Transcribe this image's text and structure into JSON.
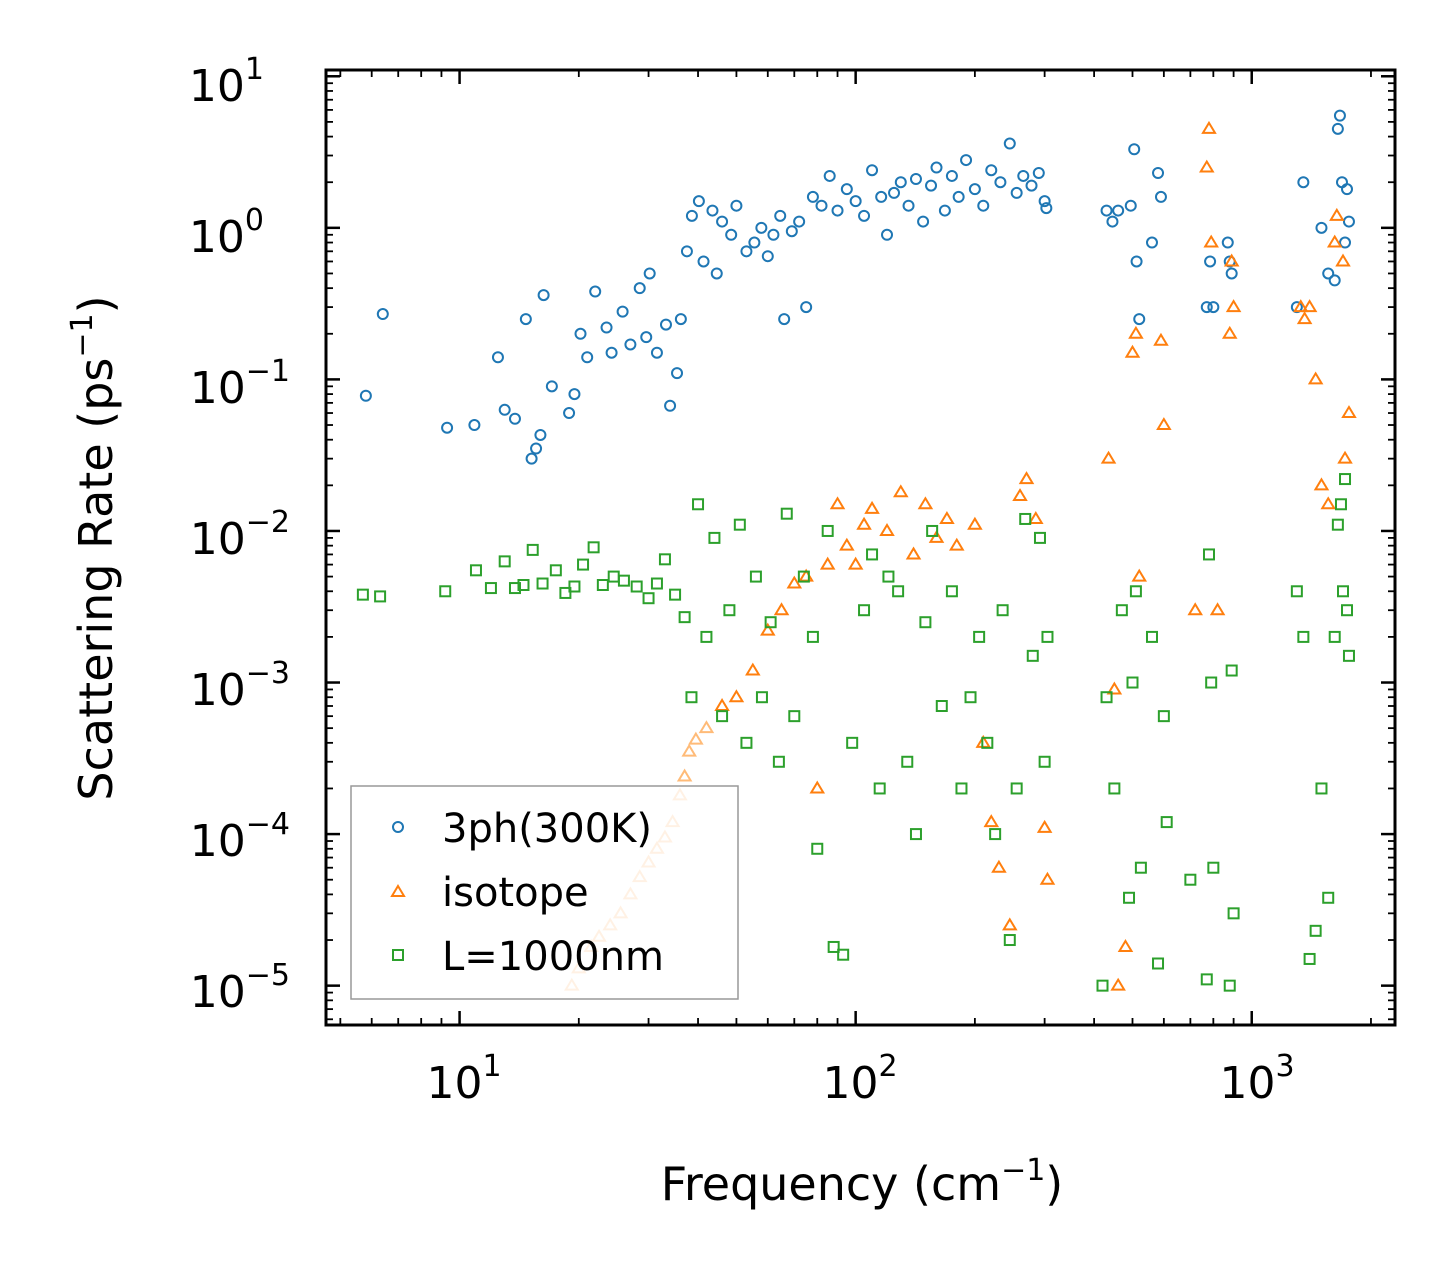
{
  "chart_data": {
    "type": "scatter",
    "title": "",
    "xlabel": "Frequency (cm",
    "xlabel_sup": "−1",
    "xlabel_end": ")",
    "ylabel": "Scattering Rate (ps",
    "ylabel_sup": "−1",
    "ylabel_end": ")",
    "xscale": "log",
    "yscale": "log",
    "xlim": [
      4.6,
      2300
    ],
    "ylim": [
      5.5e-06,
      11
    ],
    "x_ticks": [
      {
        "base": "10",
        "exp": "1",
        "value": 10
      },
      {
        "base": "10",
        "exp": "2",
        "value": 100
      },
      {
        "base": "10",
        "exp": "3",
        "value": 1000
      }
    ],
    "y_ticks": [
      {
        "base": "10",
        "exp": "1",
        "value": 10
      },
      {
        "base": "10",
        "exp": "0",
        "value": 1
      },
      {
        "base": "10",
        "exp": "−1",
        "value": 0.1
      },
      {
        "base": "10",
        "exp": "−2",
        "value": 0.01
      },
      {
        "base": "10",
        "exp": "−3",
        "value": 0.001
      },
      {
        "base": "10",
        "exp": "−4",
        "value": 0.0001
      },
      {
        "base": "10",
        "exp": "−5",
        "value": 1e-05
      }
    ],
    "legend_position": "lower-left",
    "series": [
      {
        "name": "3ph(300K)",
        "marker": "circle",
        "color": "#1f77b4",
        "points": [
          [
            5.8,
            0.078
          ],
          [
            6.4,
            0.27
          ],
          [
            9.3,
            0.048
          ],
          [
            10.9,
            0.05
          ],
          [
            12.5,
            0.14
          ],
          [
            13,
            0.063
          ],
          [
            13.8,
            0.055
          ],
          [
            14.7,
            0.25
          ],
          [
            15.2,
            0.03
          ],
          [
            15.6,
            0.035
          ],
          [
            16,
            0.043
          ],
          [
            16.3,
            0.36
          ],
          [
            17.1,
            0.09
          ],
          [
            18.9,
            0.06
          ],
          [
            19.5,
            0.08
          ],
          [
            20.2,
            0.2
          ],
          [
            21,
            0.14
          ],
          [
            22,
            0.38
          ],
          [
            23.5,
            0.22
          ],
          [
            24.2,
            0.15
          ],
          [
            25.8,
            0.28
          ],
          [
            27,
            0.17
          ],
          [
            28.5,
            0.4
          ],
          [
            29.6,
            0.19
          ],
          [
            30.2,
            0.5
          ],
          [
            31.5,
            0.15
          ],
          [
            33.2,
            0.23
          ],
          [
            34,
            0.067
          ],
          [
            35.4,
            0.11
          ],
          [
            36.2,
            0.25
          ],
          [
            37.5,
            0.7
          ],
          [
            38.6,
            1.2
          ],
          [
            40.2,
            1.5
          ],
          [
            41.3,
            0.6
          ],
          [
            43.5,
            1.3
          ],
          [
            44.6,
            0.5
          ],
          [
            46,
            1.1
          ],
          [
            48.5,
            0.9
          ],
          [
            50,
            1.4
          ],
          [
            53,
            0.7
          ],
          [
            55.5,
            0.8
          ],
          [
            57.8,
            1
          ],
          [
            60,
            0.65
          ],
          [
            62,
            0.9
          ],
          [
            64.5,
            1.2
          ],
          [
            66,
            0.25
          ],
          [
            69,
            0.95
          ],
          [
            72,
            1.1
          ],
          [
            75,
            0.3
          ],
          [
            78,
            1.6
          ],
          [
            82,
            1.4
          ],
          [
            86,
            2.2
          ],
          [
            90,
            1.3
          ],
          [
            95,
            1.8
          ],
          [
            100,
            1.5
          ],
          [
            105,
            1.2
          ],
          [
            110,
            2.4
          ],
          [
            116,
            1.6
          ],
          [
            120,
            0.9
          ],
          [
            125,
            1.7
          ],
          [
            130,
            2
          ],
          [
            136,
            1.4
          ],
          [
            142,
            2.1
          ],
          [
            148,
            1.1
          ],
          [
            155,
            1.9
          ],
          [
            160,
            2.5
          ],
          [
            168,
            1.3
          ],
          [
            175,
            2.2
          ],
          [
            182,
            1.6
          ],
          [
            190,
            2.8
          ],
          [
            200,
            1.8
          ],
          [
            210,
            1.4
          ],
          [
            220,
            2.4
          ],
          [
            232,
            2
          ],
          [
            245,
            3.6
          ],
          [
            255,
            1.7
          ],
          [
            265,
            2.2
          ],
          [
            278,
            1.9
          ],
          [
            290,
            2.3
          ],
          [
            300,
            1.5
          ],
          [
            303,
            1.35
          ],
          [
            430,
            1.3
          ],
          [
            445,
            1.1
          ],
          [
            460,
            1.3
          ],
          [
            495,
            1.4
          ],
          [
            505,
            3.3
          ],
          [
            512,
            0.6
          ],
          [
            520,
            0.25
          ],
          [
            560,
            0.8
          ],
          [
            580,
            2.3
          ],
          [
            590,
            1.6
          ],
          [
            770,
            0.3
          ],
          [
            785,
            0.6
          ],
          [
            800,
            0.3
          ],
          [
            870,
            0.8
          ],
          [
            880,
            0.6
          ],
          [
            890,
            0.5
          ],
          [
            1300,
            0.3
          ],
          [
            1350,
            2
          ],
          [
            1500,
            1
          ],
          [
            1560,
            0.5
          ],
          [
            1620,
            0.45
          ],
          [
            1650,
            4.5
          ],
          [
            1670,
            5.5
          ],
          [
            1690,
            2
          ],
          [
            1720,
            0.8
          ],
          [
            1740,
            1.8
          ],
          [
            1760,
            1.1
          ]
        ]
      },
      {
        "name": "isotope",
        "marker": "triangle",
        "color": "#ff7f0e",
        "light_color": "#ffbb78",
        "points": [
          [
            19.2,
            1e-05
          ],
          [
            20,
            1.3e-05
          ],
          [
            21.5,
            1.8e-05
          ],
          [
            22.5,
            2.1e-05
          ],
          [
            24,
            2.5e-05
          ],
          [
            25.5,
            3e-05
          ],
          [
            27,
            4e-05
          ],
          [
            28.5,
            5.2e-05
          ],
          [
            30,
            6.5e-05
          ],
          [
            31.5,
            8e-05
          ],
          [
            33,
            9.5e-05
          ],
          [
            34.5,
            0.00012
          ],
          [
            36,
            0.00018
          ],
          [
            37,
            0.00024
          ],
          [
            38,
            0.00035
          ],
          [
            39.5,
            0.00042
          ],
          [
            42,
            0.0005
          ],
          [
            46,
            0.0007
          ],
          [
            50,
            0.0008
          ],
          [
            55,
            0.0012
          ],
          [
            60,
            0.0022
          ],
          [
            65,
            0.003
          ],
          [
            70,
            0.0045
          ],
          [
            75,
            0.005
          ],
          [
            80,
            0.0002
          ],
          [
            85,
            0.006
          ],
          [
            90,
            0.015
          ],
          [
            95,
            0.008
          ],
          [
            100,
            0.006
          ],
          [
            105,
            0.011
          ],
          [
            110,
            0.014
          ],
          [
            120,
            0.01
          ],
          [
            130,
            0.018
          ],
          [
            140,
            0.007
          ],
          [
            150,
            0.015
          ],
          [
            160,
            0.009
          ],
          [
            170,
            0.012
          ],
          [
            180,
            0.008
          ],
          [
            200,
            0.011
          ],
          [
            210,
            0.0004
          ],
          [
            220,
            0.00012
          ],
          [
            230,
            6e-05
          ],
          [
            245,
            2.5e-05
          ],
          [
            260,
            0.017
          ],
          [
            270,
            0.022
          ],
          [
            285,
            0.012
          ],
          [
            300,
            0.00011
          ],
          [
            305,
            5e-05
          ],
          [
            435,
            0.03
          ],
          [
            450,
            0.0009
          ],
          [
            460,
            1e-05
          ],
          [
            480,
            1.8e-05
          ],
          [
            500,
            0.15
          ],
          [
            510,
            0.2
          ],
          [
            520,
            0.005
          ],
          [
            590,
            0.18
          ],
          [
            600,
            0.05
          ],
          [
            720,
            0.003
          ],
          [
            770,
            2.5
          ],
          [
            780,
            4.5
          ],
          [
            790,
            0.8
          ],
          [
            820,
            0.003
          ],
          [
            880,
            0.2
          ],
          [
            890,
            0.6
          ],
          [
            900,
            0.3
          ],
          [
            1330,
            0.3
          ],
          [
            1360,
            0.25
          ],
          [
            1400,
            0.3
          ],
          [
            1450,
            0.1
          ],
          [
            1500,
            0.02
          ],
          [
            1560,
            0.015
          ],
          [
            1620,
            0.8
          ],
          [
            1640,
            1.2
          ],
          [
            1700,
            0.6
          ],
          [
            1720,
            0.03
          ],
          [
            1760,
            0.06
          ]
        ]
      },
      {
        "name": "L=1000nm",
        "marker": "square",
        "color": "#2ca02c",
        "points": [
          [
            5.7,
            0.0038
          ],
          [
            6.3,
            0.0037
          ],
          [
            9.2,
            0.004
          ],
          [
            11,
            0.0055
          ],
          [
            12,
            0.0042
          ],
          [
            13,
            0.0063
          ],
          [
            13.8,
            0.0042
          ],
          [
            14.5,
            0.0044
          ],
          [
            15.3,
            0.0075
          ],
          [
            16.2,
            0.0045
          ],
          [
            17.5,
            0.0055
          ],
          [
            18.5,
            0.0039
          ],
          [
            19.5,
            0.0043
          ],
          [
            20.5,
            0.006
          ],
          [
            21.8,
            0.0078
          ],
          [
            23,
            0.0044
          ],
          [
            24.5,
            0.005
          ],
          [
            26,
            0.0047
          ],
          [
            28,
            0.0043
          ],
          [
            30,
            0.0036
          ],
          [
            31.5,
            0.0045
          ],
          [
            33,
            0.0065
          ],
          [
            35,
            0.0038
          ],
          [
            37,
            0.0027
          ],
          [
            38.5,
            0.0008
          ],
          [
            40,
            0.015
          ],
          [
            42,
            0.002
          ],
          [
            44,
            0.009
          ],
          [
            46,
            0.0006
          ],
          [
            48,
            0.003
          ],
          [
            51,
            0.011
          ],
          [
            53,
            0.0004
          ],
          [
            56,
            0.005
          ],
          [
            58,
            0.0008
          ],
          [
            61,
            0.0025
          ],
          [
            64,
            0.0003
          ],
          [
            67,
            0.013
          ],
          [
            70,
            0.0006
          ],
          [
            74,
            0.005
          ],
          [
            78,
            0.002
          ],
          [
            80,
            8e-05
          ],
          [
            85,
            0.01
          ],
          [
            88,
            1.8e-05
          ],
          [
            93,
            1.6e-05
          ],
          [
            98,
            0.0004
          ],
          [
            105,
            0.003
          ],
          [
            110,
            0.007
          ],
          [
            115,
            0.0002
          ],
          [
            121,
            0.005
          ],
          [
            128,
            0.004
          ],
          [
            135,
            0.0003
          ],
          [
            142,
            0.0001
          ],
          [
            150,
            0.0025
          ],
          [
            156,
            0.01
          ],
          [
            165,
            0.0007
          ],
          [
            175,
            0.004
          ],
          [
            185,
            0.0002
          ],
          [
            195,
            0.0008
          ],
          [
            205,
            0.002
          ],
          [
            215,
            0.0004
          ],
          [
            225,
            0.0001
          ],
          [
            235,
            0.003
          ],
          [
            245,
            2e-05
          ],
          [
            255,
            0.0002
          ],
          [
            268,
            0.012
          ],
          [
            280,
            0.0015
          ],
          [
            292,
            0.009
          ],
          [
            300,
            0.0003
          ],
          [
            305,
            0.002
          ],
          [
            420,
            1e-05
          ],
          [
            430,
            0.0008
          ],
          [
            450,
            0.0002
          ],
          [
            470,
            0.003
          ],
          [
            490,
            3.8e-05
          ],
          [
            500,
            0.001
          ],
          [
            510,
            0.004
          ],
          [
            525,
            6e-05
          ],
          [
            560,
            0.002
          ],
          [
            580,
            1.4e-05
          ],
          [
            600,
            0.0006
          ],
          [
            610,
            0.00012
          ],
          [
            700,
            5e-05
          ],
          [
            770,
            1.1e-05
          ],
          [
            780,
            0.007
          ],
          [
            790,
            0.001
          ],
          [
            800,
            6e-05
          ],
          [
            880,
            1e-05
          ],
          [
            890,
            0.0012
          ],
          [
            900,
            3e-05
          ],
          [
            1300,
            0.004
          ],
          [
            1350,
            0.002
          ],
          [
            1400,
            1.5e-05
          ],
          [
            1450,
            2.3e-05
          ],
          [
            1500,
            0.0002
          ],
          [
            1560,
            3.8e-05
          ],
          [
            1620,
            0.002
          ],
          [
            1650,
            0.011
          ],
          [
            1680,
            0.015
          ],
          [
            1700,
            0.004
          ],
          [
            1720,
            0.022
          ],
          [
            1740,
            0.003
          ],
          [
            1760,
            0.0015
          ]
        ]
      }
    ]
  }
}
